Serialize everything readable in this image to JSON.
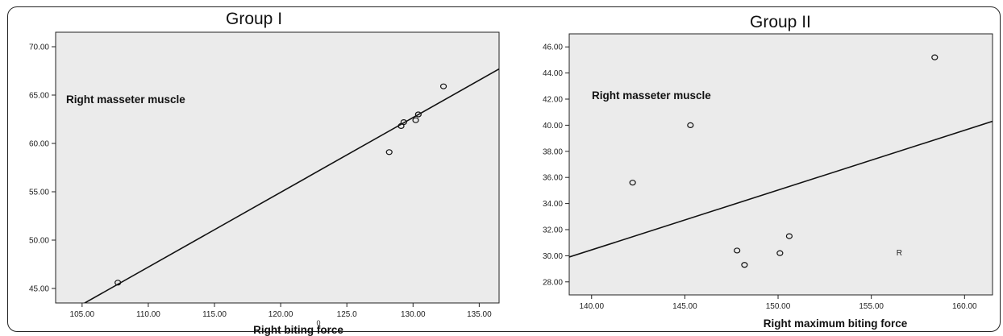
{
  "charts": {
    "left_title": "Group I",
    "right_title": "Group II"
  },
  "chart_data": [
    {
      "type": "scatter",
      "title": "Group I",
      "annotation": "Right masseter muscle",
      "xlabel": "Right biting force",
      "ylabel": "",
      "xlim": [
        103.0,
        136.5
      ],
      "ylim": [
        43.5,
        71.5
      ],
      "x_ticks": [
        "105.00",
        "110.00",
        "115.00",
        "120.00",
        "125.0",
        "130.00",
        "135.00"
      ],
      "x_tick_values": [
        105,
        110,
        115,
        120,
        125,
        130,
        135
      ],
      "y_ticks": [
        "45.00",
        "50.00",
        "55.00",
        "60.00",
        "65.00",
        "70.00"
      ],
      "y_tick_values": [
        45,
        50,
        55,
        60,
        65,
        70
      ],
      "stray_label": "0",
      "points": [
        {
          "x": 107.7,
          "y": 45.6
        },
        {
          "x": 128.2,
          "y": 59.1
        },
        {
          "x": 129.1,
          "y": 61.8
        },
        {
          "x": 129.3,
          "y": 62.2
        },
        {
          "x": 130.2,
          "y": 62.4
        },
        {
          "x": 130.4,
          "y": 63.0
        },
        {
          "x": 132.3,
          "y": 65.9
        }
      ],
      "fit_line": {
        "x1": 103.0,
        "y1": 41.8,
        "x2": 136.5,
        "y2": 67.7
      },
      "grid": false,
      "background": "#ebebeb"
    },
    {
      "type": "scatter",
      "title": "Group II",
      "annotation": "Right masseter muscle",
      "xlabel": "Right maximum biting force",
      "ylabel": "",
      "xlim": [
        138.8,
        161.5
      ],
      "ylim": [
        27.0,
        47.0
      ],
      "x_ticks": [
        "140.00",
        "145.00",
        "150.00",
        "155.00",
        "160.00"
      ],
      "x_tick_values": [
        140,
        145,
        150,
        155,
        160
      ],
      "y_ticks": [
        "28.00",
        "30.00",
        "32.00",
        "34.00",
        "36.00",
        "38.00",
        "40.00",
        "42.00",
        "44.00",
        "46.00"
      ],
      "y_tick_values": [
        28,
        30,
        32,
        34,
        36,
        38,
        40,
        42,
        44,
        46
      ],
      "stray_label": "R",
      "stray_label_at": {
        "x": 156.5,
        "y": 30.2
      },
      "points": [
        {
          "x": 142.2,
          "y": 35.6
        },
        {
          "x": 145.3,
          "y": 40.0
        },
        {
          "x": 147.8,
          "y": 30.4
        },
        {
          "x": 148.2,
          "y": 29.3
        },
        {
          "x": 150.1,
          "y": 30.2
        },
        {
          "x": 150.6,
          "y": 31.5
        },
        {
          "x": 158.4,
          "y": 45.2
        }
      ],
      "fit_line": {
        "x1": 138.8,
        "y1": 29.9,
        "x2": 161.5,
        "y2": 40.3
      },
      "grid": false,
      "background": "#ebebeb"
    }
  ]
}
